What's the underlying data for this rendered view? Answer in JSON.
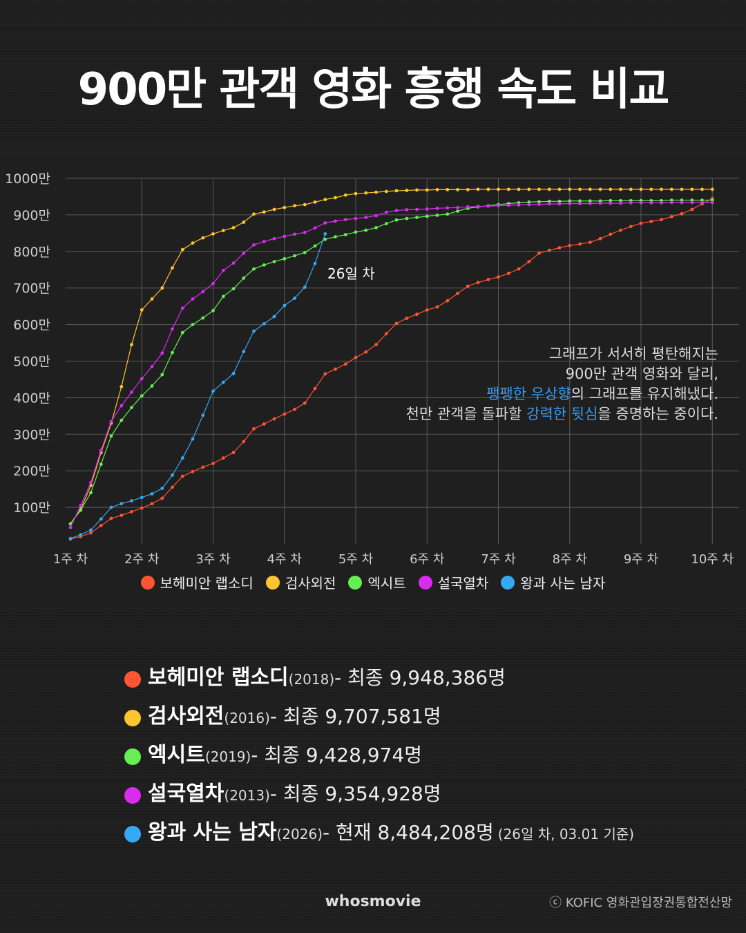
{
  "title": "900만 관객 영화 흥행 속도 비교",
  "chart_data": {
    "type": "line",
    "title": "",
    "xlabel": "",
    "ylabel": "",
    "x_ticks": [
      "1주 차",
      "2주 차",
      "3주 차",
      "4주 차",
      "5주 차",
      "6주 차",
      "7주 차",
      "8주 차",
      "9주 차",
      "10주 차"
    ],
    "y_ticks": [
      "100만",
      "200만",
      "300만",
      "400만",
      "500만",
      "600만",
      "700만",
      "800만",
      "900만",
      "1000만"
    ],
    "x_unit": "day",
    "x_range": [
      1,
      64
    ],
    "ylim": [
      0,
      1000
    ],
    "grid": true,
    "legend_position": "bottom",
    "series": [
      {
        "name": "보헤미안 랩소디",
        "color": "#ff5533",
        "values": [
          [
            1,
            13
          ],
          [
            2,
            20
          ],
          [
            3,
            30
          ],
          [
            4,
            50
          ],
          [
            5,
            70
          ],
          [
            6,
            78
          ],
          [
            7,
            88
          ],
          [
            8,
            98
          ],
          [
            9,
            110
          ],
          [
            10,
            125
          ],
          [
            11,
            155
          ],
          [
            12,
            185
          ],
          [
            13,
            198
          ],
          [
            14,
            210
          ],
          [
            15,
            220
          ],
          [
            16,
            235
          ],
          [
            17,
            250
          ],
          [
            18,
            280
          ],
          [
            19,
            315
          ],
          [
            20,
            328
          ],
          [
            21,
            342
          ],
          [
            22,
            355
          ],
          [
            23,
            368
          ],
          [
            24,
            385
          ],
          [
            25,
            425
          ],
          [
            26,
            465
          ],
          [
            27,
            478
          ],
          [
            28,
            492
          ],
          [
            29,
            510
          ],
          [
            30,
            525
          ],
          [
            31,
            545
          ],
          [
            32,
            575
          ],
          [
            33,
            603
          ],
          [
            34,
            617
          ],
          [
            35,
            628
          ],
          [
            36,
            640
          ],
          [
            37,
            648
          ],
          [
            38,
            665
          ],
          [
            39,
            685
          ],
          [
            40,
            705
          ],
          [
            41,
            715
          ],
          [
            42,
            723
          ],
          [
            43,
            730
          ],
          [
            44,
            740
          ],
          [
            45,
            752
          ],
          [
            46,
            772
          ],
          [
            47,
            795
          ],
          [
            48,
            803
          ],
          [
            49,
            810
          ],
          [
            50,
            816
          ],
          [
            51,
            820
          ],
          [
            52,
            825
          ],
          [
            53,
            835
          ],
          [
            54,
            847
          ],
          [
            55,
            858
          ],
          [
            56,
            868
          ],
          [
            57,
            877
          ],
          [
            58,
            882
          ],
          [
            59,
            887
          ],
          [
            60,
            895
          ],
          [
            61,
            903
          ],
          [
            62,
            915
          ],
          [
            63,
            930
          ],
          [
            64,
            945
          ]
        ]
      },
      {
        "name": "검사외전",
        "color": "#ffc52e",
        "values": [
          [
            1,
            55
          ],
          [
            2,
            95
          ],
          [
            3,
            160
          ],
          [
            4,
            250
          ],
          [
            5,
            330
          ],
          [
            6,
            430
          ],
          [
            7,
            545
          ],
          [
            8,
            640
          ],
          [
            9,
            670
          ],
          [
            10,
            700
          ],
          [
            11,
            755
          ],
          [
            12,
            805
          ],
          [
            13,
            823
          ],
          [
            14,
            837
          ],
          [
            15,
            848
          ],
          [
            16,
            857
          ],
          [
            17,
            865
          ],
          [
            18,
            880
          ],
          [
            19,
            902
          ],
          [
            20,
            908
          ],
          [
            21,
            915
          ],
          [
            22,
            920
          ],
          [
            23,
            925
          ],
          [
            24,
            928
          ],
          [
            25,
            935
          ],
          [
            26,
            942
          ],
          [
            27,
            947
          ],
          [
            28,
            954
          ],
          [
            29,
            958
          ],
          [
            30,
            960
          ],
          [
            31,
            962
          ],
          [
            32,
            964
          ],
          [
            33,
            966
          ],
          [
            34,
            967
          ],
          [
            35,
            968
          ],
          [
            36,
            968
          ],
          [
            37,
            969
          ],
          [
            38,
            969
          ],
          [
            39,
            969
          ],
          [
            40,
            969
          ],
          [
            41,
            970
          ],
          [
            42,
            970
          ],
          [
            43,
            970
          ],
          [
            44,
            970
          ],
          [
            45,
            970
          ],
          [
            46,
            970
          ],
          [
            47,
            970
          ],
          [
            48,
            970
          ],
          [
            49,
            970
          ],
          [
            50,
            970
          ],
          [
            51,
            970
          ],
          [
            52,
            970
          ],
          [
            53,
            970
          ],
          [
            54,
            970
          ],
          [
            55,
            970
          ],
          [
            56,
            970
          ],
          [
            57,
            970
          ],
          [
            58,
            970
          ],
          [
            59,
            970
          ],
          [
            60,
            970
          ],
          [
            61,
            970
          ],
          [
            62,
            970
          ],
          [
            63,
            970
          ],
          [
            64,
            970
          ]
        ]
      },
      {
        "name": "엑시트",
        "color": "#66ee55",
        "values": [
          [
            1,
            55
          ],
          [
            2,
            92
          ],
          [
            3,
            140
          ],
          [
            4,
            218
          ],
          [
            5,
            295
          ],
          [
            6,
            338
          ],
          [
            7,
            373
          ],
          [
            8,
            405
          ],
          [
            9,
            432
          ],
          [
            10,
            463
          ],
          [
            11,
            523
          ],
          [
            12,
            578
          ],
          [
            13,
            600
          ],
          [
            14,
            618
          ],
          [
            15,
            638
          ],
          [
            16,
            677
          ],
          [
            17,
            698
          ],
          [
            18,
            727
          ],
          [
            19,
            752
          ],
          [
            20,
            763
          ],
          [
            21,
            772
          ],
          [
            22,
            780
          ],
          [
            23,
            788
          ],
          [
            24,
            797
          ],
          [
            25,
            815
          ],
          [
            26,
            833
          ],
          [
            27,
            840
          ],
          [
            28,
            846
          ],
          [
            29,
            853
          ],
          [
            30,
            858
          ],
          [
            31,
            865
          ],
          [
            32,
            876
          ],
          [
            33,
            886
          ],
          [
            34,
            890
          ],
          [
            35,
            893
          ],
          [
            36,
            896
          ],
          [
            37,
            899
          ],
          [
            38,
            902
          ],
          [
            39,
            910
          ],
          [
            40,
            918
          ],
          [
            41,
            922
          ],
          [
            42,
            925
          ],
          [
            43,
            928
          ],
          [
            44,
            931
          ],
          [
            45,
            933
          ],
          [
            46,
            935
          ],
          [
            47,
            936
          ],
          [
            48,
            937
          ],
          [
            49,
            937
          ],
          [
            50,
            938
          ],
          [
            51,
            938
          ],
          [
            52,
            938
          ],
          [
            53,
            938
          ],
          [
            54,
            939
          ],
          [
            55,
            939
          ],
          [
            56,
            939
          ],
          [
            57,
            939
          ],
          [
            58,
            939
          ],
          [
            59,
            939
          ],
          [
            60,
            940
          ],
          [
            61,
            940
          ],
          [
            62,
            940
          ],
          [
            63,
            940
          ],
          [
            64,
            940
          ]
        ]
      },
      {
        "name": "설국열차",
        "color": "#d92cf0",
        "values": [
          [
            1,
            45
          ],
          [
            2,
            105
          ],
          [
            3,
            168
          ],
          [
            4,
            256
          ],
          [
            5,
            335
          ],
          [
            6,
            378
          ],
          [
            7,
            415
          ],
          [
            8,
            452
          ],
          [
            9,
            485
          ],
          [
            10,
            522
          ],
          [
            11,
            588
          ],
          [
            12,
            645
          ],
          [
            13,
            670
          ],
          [
            14,
            690
          ],
          [
            15,
            712
          ],
          [
            16,
            748
          ],
          [
            17,
            768
          ],
          [
            18,
            795
          ],
          [
            19,
            818
          ],
          [
            20,
            827
          ],
          [
            21,
            835
          ],
          [
            22,
            841
          ],
          [
            23,
            847
          ],
          [
            24,
            852
          ],
          [
            25,
            864
          ],
          [
            26,
            878
          ],
          [
            27,
            883
          ],
          [
            28,
            887
          ],
          [
            29,
            890
          ],
          [
            30,
            893
          ],
          [
            31,
            898
          ],
          [
            32,
            907
          ],
          [
            33,
            912
          ],
          [
            34,
            914
          ],
          [
            35,
            915
          ],
          [
            36,
            916
          ],
          [
            37,
            918
          ],
          [
            38,
            919
          ],
          [
            39,
            920
          ],
          [
            40,
            922
          ],
          [
            41,
            923
          ],
          [
            42,
            924
          ],
          [
            43,
            925
          ],
          [
            44,
            926
          ],
          [
            45,
            927
          ],
          [
            46,
            928
          ],
          [
            47,
            929
          ],
          [
            48,
            930
          ],
          [
            49,
            930
          ],
          [
            50,
            931
          ],
          [
            51,
            931
          ],
          [
            52,
            931
          ],
          [
            53,
            932
          ],
          [
            54,
            932
          ],
          [
            55,
            932
          ],
          [
            56,
            933
          ],
          [
            57,
            933
          ],
          [
            58,
            933
          ],
          [
            59,
            933
          ],
          [
            60,
            934
          ],
          [
            61,
            934
          ],
          [
            62,
            934
          ],
          [
            63,
            934
          ],
          [
            64,
            934
          ]
        ]
      },
      {
        "name": "왕과 사는 남자",
        "color": "#36a9f5",
        "values": [
          [
            1,
            15
          ],
          [
            2,
            25
          ],
          [
            3,
            38
          ],
          [
            4,
            68
          ],
          [
            5,
            100
          ],
          [
            6,
            110
          ],
          [
            7,
            118
          ],
          [
            8,
            127
          ],
          [
            9,
            137
          ],
          [
            10,
            152
          ],
          [
            11,
            188
          ],
          [
            12,
            235
          ],
          [
            13,
            287
          ],
          [
            14,
            352
          ],
          [
            15,
            418
          ],
          [
            16,
            442
          ],
          [
            17,
            466
          ],
          [
            18,
            526
          ],
          [
            19,
            582
          ],
          [
            20,
            602
          ],
          [
            21,
            622
          ],
          [
            22,
            652
          ],
          [
            23,
            672
          ],
          [
            24,
            702
          ],
          [
            25,
            767
          ],
          [
            26,
            848
          ]
        ]
      }
    ]
  },
  "annotation": {
    "day_label": "26일 차",
    "line1": "그래프가 서서히 평탄해지는",
    "line2": "900만 관객 영화와 달리,",
    "line3_hl": "팽팽한 우상향",
    "line3_rest": "의 그래프를 유지해냈다.",
    "line4_a": "천만 관객을 돌파할 ",
    "line4_hl": "강력한 뒷심",
    "line4_b": "을 증명하는 중이다."
  },
  "finals": [
    {
      "name": "보헤미안 랩소디",
      "year": "(2018)",
      "text": " - 최종 9,948,386명",
      "note": "",
      "color": "#ff5533"
    },
    {
      "name": "검사외전",
      "year": "(2016)",
      "text": " - 최종 9,707,581명",
      "note": "",
      "color": "#ffc52e"
    },
    {
      "name": "엑시트",
      "year": "(2019)",
      "text": " - 최종 9,428,974명",
      "note": "",
      "color": "#66ee55"
    },
    {
      "name": "설국열차",
      "year": "(2013)",
      "text": " - 최종 9,354,928명",
      "note": "",
      "color": "#d92cf0"
    },
    {
      "name": "왕과 사는 남자",
      "year": "(2026)",
      "text": " - 현재 8,484,208명",
      "note": "(26일 차, 03.01 기준)",
      "color": "#36a9f5"
    }
  ],
  "brand": "whosmovie",
  "source": "ⓒ KOFIC 영화관입장권통합전산망"
}
